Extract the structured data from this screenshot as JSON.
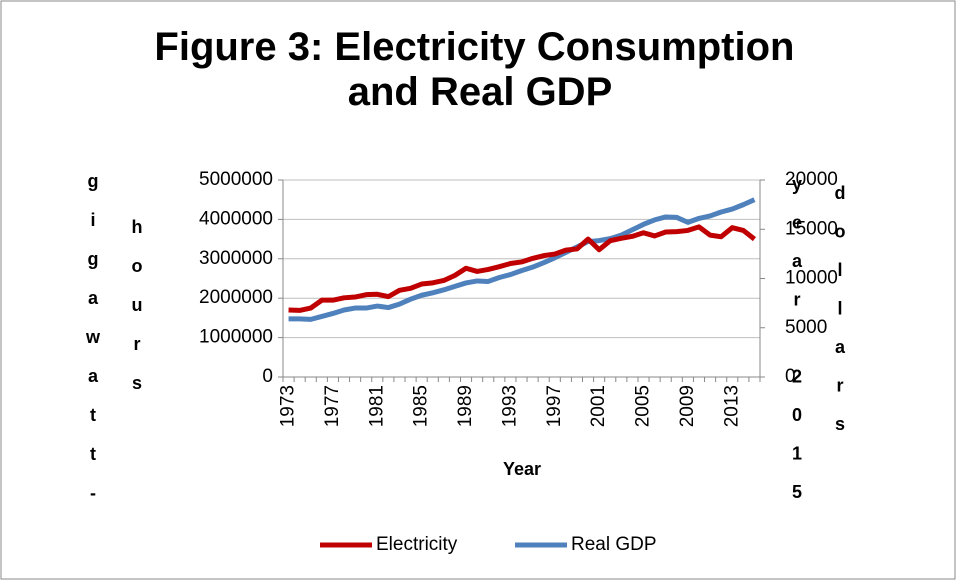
{
  "chart_data": {
    "type": "line",
    "title": "Figure 3: Electricity Consumption and Real GDP",
    "x_label": "Year",
    "y_label": "gigawatt-hours",
    "y2_label": "year 2015 dollars",
    "categories": [
      "1973",
      null,
      null,
      null,
      "1977",
      null,
      null,
      null,
      "1981",
      null,
      null,
      null,
      "1985",
      null,
      null,
      null,
      "1989",
      null,
      null,
      null,
      "1993",
      null,
      null,
      null,
      "1997",
      null,
      null,
      null,
      "2001",
      null,
      null,
      null,
      "2005",
      null,
      null,
      null,
      "2009",
      null,
      null,
      null,
      "2013",
      null,
      null
    ],
    "series": [
      {
        "name": "Electricity",
        "color": "#c00000",
        "values": [
          1700000,
          1690000,
          1750000,
          1950000,
          1950000,
          2010000,
          2030000,
          2090000,
          2100000,
          2040000,
          2200000,
          2250000,
          2360000,
          2390000,
          2450000,
          2580000,
          2760000,
          2680000,
          2730000,
          2800000,
          2880000,
          2920000,
          3010000,
          3080000,
          3120000,
          3220000,
          3250000,
          3500000,
          3230000,
          3460000,
          3520000,
          3570000,
          3660000,
          3580000,
          3680000,
          3690000,
          3720000,
          3810000,
          3600000,
          3560000,
          3790000,
          3720000,
          3500000
        ]
      },
      {
        "name": "Real GDP",
        "color": "#4f81bd",
        "axis": "y2",
        "values": [
          5900,
          5900,
          5850,
          6150,
          6450,
          6800,
          7000,
          7000,
          7200,
          7050,
          7400,
          7900,
          8300,
          8550,
          8850,
          9200,
          9550,
          9750,
          9700,
          10100,
          10400,
          10800,
          11150,
          11600,
          12100,
          12650,
          13200,
          13750,
          13850,
          14050,
          14400,
          14950,
          15500,
          15950,
          16250,
          16200,
          15700,
          16100,
          16350,
          16750,
          17050,
          17500,
          18000
        ]
      }
    ],
    "ylim": [
      0,
      5000000
    ],
    "yticks": [
      0,
      1000000,
      2000000,
      3000000,
      4000000,
      5000000
    ],
    "y2lim": [
      0,
      20000
    ],
    "y2ticks": [
      0,
      5000,
      10000,
      15000,
      20000
    ],
    "grid": true,
    "legend": "bottom"
  }
}
